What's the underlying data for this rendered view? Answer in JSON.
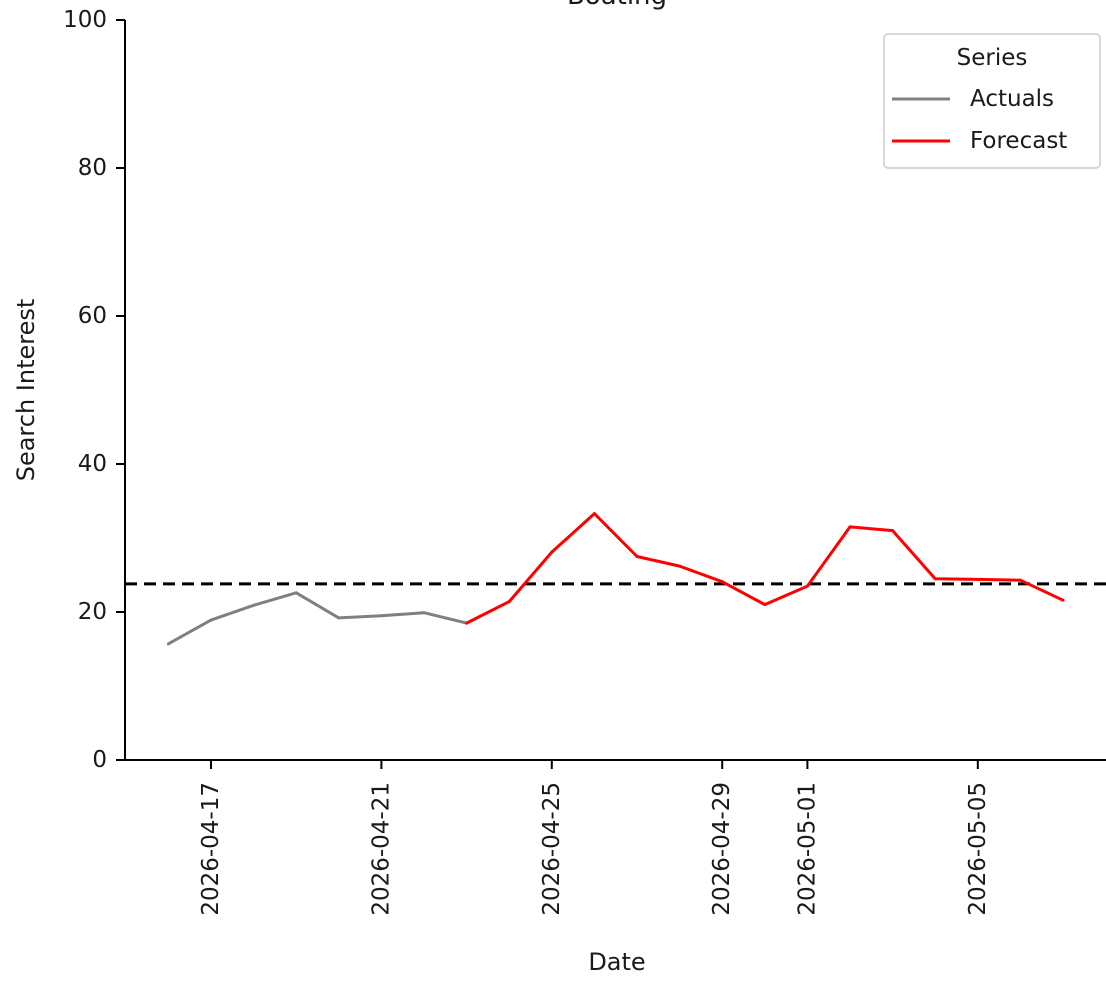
{
  "chart_data": {
    "type": "line",
    "title": "Boating",
    "xlabel": "Date",
    "ylabel": "Search Interest",
    "ylim": [
      0,
      100
    ],
    "yticks": [
      0,
      20,
      40,
      60,
      80,
      100
    ],
    "xlim": [
      "2026-04-14",
      "2026-05-07"
    ],
    "xticks": [
      "2026-04-17",
      "2026-04-21",
      "2026-04-25",
      "2026-04-29",
      "2026-05-01",
      "2026-05-05"
    ],
    "legend_title": "Series",
    "legend_position": "top-right",
    "grid": false,
    "reference_line": {
      "y": 23.8,
      "style": "dashed",
      "color": "#000000"
    },
    "series": [
      {
        "name": "Actuals",
        "color": "#808080",
        "x": [
          "2026-04-16",
          "2026-04-17",
          "2026-04-18",
          "2026-04-19",
          "2026-04-20",
          "2026-04-21",
          "2026-04-22",
          "2026-04-23"
        ],
        "values": [
          15.7,
          18.9,
          20.9,
          22.6,
          19.2,
          19.5,
          19.9,
          18.5
        ]
      },
      {
        "name": "Forecast",
        "color": "#ff0000",
        "x": [
          "2026-04-23",
          "2026-04-24",
          "2026-04-25",
          "2026-04-26",
          "2026-04-27",
          "2026-04-28",
          "2026-04-29",
          "2026-04-30",
          "2026-05-01",
          "2026-05-02",
          "2026-05-03",
          "2026-05-04",
          "2026-05-05",
          "2026-05-06",
          "2026-05-07"
        ],
        "values": [
          18.5,
          21.4,
          28.1,
          33.3,
          27.5,
          26.2,
          24.1,
          21.0,
          23.5,
          31.5,
          31.0,
          24.5,
          24.4,
          24.3,
          21.6
        ]
      }
    ]
  }
}
